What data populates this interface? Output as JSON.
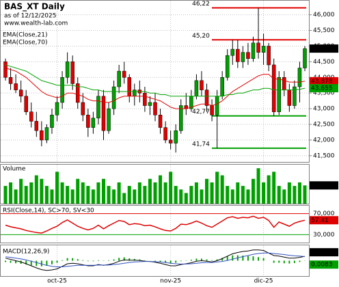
{
  "chart_data": {
    "type": "candlestick",
    "title": "BAS_XT Daily",
    "subtitle": "as of 12/12/2025",
    "source": "www.wealth-lab.com",
    "categories": [
      null,
      null,
      null,
      null,
      null,
      null,
      null,
      null,
      null,
      null,
      "oct-25",
      null,
      null,
      null,
      null,
      null,
      null,
      null,
      null,
      null,
      null,
      null,
      null,
      null,
      null,
      null,
      null,
      null,
      null,
      null,
      null,
      null,
      "nov-25",
      null,
      null,
      null,
      null,
      null,
      null,
      null,
      null,
      null,
      null,
      null,
      null,
      null,
      null,
      null,
      null,
      null,
      "dic-25",
      null,
      null,
      null,
      null,
      null,
      null,
      null,
      null
    ],
    "open": [
      44.5,
      44.0,
      43.8,
      43.6,
      43.4,
      42.9,
      42.6,
      42.3,
      42.0,
      42.4,
      42.8,
      43.2,
      44.0,
      44.5,
      43.8,
      43.2,
      42.8,
      42.4,
      42.7,
      43.4,
      42.3,
      43.0,
      43.7,
      44.2,
      44.0,
      43.4,
      43.6,
      43.5,
      43.1,
      43.2,
      42.8,
      42.4,
      42.0,
      41.9,
      42.3,
      43.1,
      43.0,
      43.4,
      43.9,
      43.6,
      43.1,
      42.8,
      43.4,
      44.0,
      44.7,
      44.9,
      44.5,
      44.8,
      44.6,
      45.1,
      44.8,
      45.0,
      44.4,
      42.9,
      44.0,
      43.6,
      43.1,
      43.7,
      44.3
    ],
    "high": [
      44.6,
      44.3,
      44.1,
      43.9,
      43.6,
      43.2,
      42.9,
      42.6,
      42.5,
      43.0,
      43.4,
      44.2,
      44.8,
      44.7,
      44.0,
      43.5,
      43.0,
      42.9,
      43.6,
      43.6,
      43.2,
      43.9,
      44.4,
      44.5,
      44.1,
      43.8,
      43.9,
      43.7,
      43.4,
      43.5,
      43.0,
      42.6,
      42.3,
      42.5,
      43.3,
      43.5,
      43.6,
      44.1,
      44.2,
      43.8,
      43.3,
      43.6,
      44.2,
      44.9,
      45.2,
      45.2,
      45.0,
      45.1,
      45.3,
      46.22,
      45.4,
      45.1,
      44.6,
      44.2,
      44.2,
      43.8,
      43.9,
      44.5,
      45.0
    ],
    "low": [
      43.9,
      43.6,
      43.5,
      43.2,
      42.8,
      42.4,
      42.1,
      41.8,
      41.9,
      42.2,
      42.6,
      43.0,
      43.8,
      43.6,
      43.0,
      42.6,
      42.1,
      42.2,
      42.5,
      42.0,
      42.2,
      42.8,
      43.5,
      43.8,
      43.2,
      43.1,
      43.2,
      42.9,
      42.8,
      42.6,
      42.2,
      41.9,
      41.7,
      41.6,
      42.2,
      42.8,
      42.9,
      43.3,
      43.4,
      42.9,
      42.6,
      41.74,
      43.3,
      43.9,
      44.4,
      44.3,
      44.3,
      44.4,
      44.5,
      44.6,
      44.4,
      44.2,
      42.77,
      42.8,
      43.4,
      42.9,
      43.0,
      43.2,
      44.2
    ],
    "close": [
      44.0,
      43.8,
      43.6,
      43.4,
      42.9,
      42.6,
      42.3,
      42.0,
      42.4,
      42.8,
      43.2,
      44.0,
      44.5,
      43.8,
      43.2,
      42.8,
      42.4,
      42.7,
      43.4,
      42.3,
      43.0,
      43.7,
      44.2,
      44.0,
      43.4,
      43.6,
      43.5,
      43.1,
      43.2,
      42.8,
      42.4,
      42.0,
      41.9,
      42.3,
      43.1,
      43.0,
      43.4,
      43.9,
      43.6,
      43.1,
      42.8,
      43.4,
      44.0,
      44.7,
      44.9,
      44.5,
      44.8,
      44.6,
      45.1,
      44.8,
      45.0,
      44.4,
      42.9,
      44.0,
      43.6,
      43.1,
      43.7,
      44.3,
      44.92
    ],
    "close_last_label": "44,920",
    "up_color": "#00a000",
    "down_color": "#e00000",
    "series": [
      {
        "name": "EMA(Close,21)",
        "color": "#e00000",
        "last_label": "43,878",
        "values": [
          44.3,
          44.25,
          44.2,
          44.1,
          44.0,
          43.85,
          43.7,
          43.55,
          43.45,
          43.4,
          43.35,
          43.4,
          43.5,
          43.5,
          43.45,
          43.4,
          43.3,
          43.25,
          43.25,
          43.2,
          43.2,
          43.25,
          43.35,
          43.4,
          43.4,
          43.4,
          43.4,
          43.4,
          43.35,
          43.3,
          43.25,
          43.15,
          43.05,
          43.0,
          43.0,
          43.0,
          43.05,
          43.1,
          43.15,
          43.15,
          43.1,
          43.15,
          43.25,
          43.4,
          43.55,
          43.65,
          43.75,
          43.85,
          43.95,
          44.05,
          44.1,
          44.1,
          43.95,
          43.95,
          43.9,
          43.85,
          43.85,
          43.85,
          43.878
        ]
      },
      {
        "name": "EMA(Close,70)",
        "color": "#00a000",
        "last_label": "43,655",
        "values": [
          44.4,
          44.35,
          44.3,
          44.25,
          44.2,
          44.1,
          44.0,
          43.9,
          43.85,
          43.8,
          43.75,
          43.75,
          43.75,
          43.75,
          43.7,
          43.7,
          43.65,
          43.6,
          43.6,
          43.55,
          43.55,
          43.55,
          43.55,
          43.55,
          43.55,
          43.55,
          43.55,
          43.55,
          43.5,
          43.5,
          43.45,
          43.45,
          43.4,
          43.4,
          43.4,
          43.4,
          43.4,
          43.4,
          43.4,
          43.4,
          43.4,
          43.4,
          43.4,
          43.45,
          43.45,
          43.5,
          43.5,
          43.55,
          43.6,
          43.6,
          43.65,
          43.65,
          43.6,
          43.6,
          43.6,
          43.6,
          43.6,
          43.62,
          43.655
        ]
      }
    ],
    "levels": [
      {
        "value": 46.22,
        "label": "46,22",
        "color": "#e00000"
      },
      {
        "value": 45.2,
        "label": "45,20",
        "color": "#e00000"
      },
      {
        "value": 42.77,
        "label": "42,77",
        "color": "#00a000"
      },
      {
        "value": 41.74,
        "label": "41,74",
        "color": "#00a000"
      }
    ],
    "ylim": [
      41.3,
      46.45
    ],
    "yticks": [
      {
        "value": 41.5,
        "label": "41,500"
      },
      {
        "value": 42,
        "label": "42,000"
      },
      {
        "value": 42.5,
        "label": "42,500"
      },
      {
        "value": 43,
        "label": "43,000"
      },
      {
        "value": 43.5,
        "label": "43,500"
      },
      {
        "value": 44,
        "label": "44,000"
      },
      {
        "value": 44.5,
        "label": "44,500"
      },
      {
        "value": 45,
        "label": "45,000"
      },
      {
        "value": 45.5,
        "label": "45,500"
      },
      {
        "value": 46,
        "label": "46,000"
      }
    ],
    "grid": true,
    "volume": {
      "name": "Volume",
      "color": "#00a000",
      "ylim": [
        0,
        11
      ],
      "last_label": "5,15 M",
      "values": [
        5,
        6,
        4,
        7,
        5,
        6,
        8,
        7,
        5,
        4,
        9,
        6,
        5,
        4,
        7,
        6,
        5,
        4,
        6,
        7,
        5,
        4,
        6,
        3,
        5,
        4,
        6,
        5,
        7,
        6,
        8,
        6,
        9,
        5,
        4,
        3,
        5,
        6,
        4,
        7,
        6,
        9,
        8,
        5,
        4,
        6,
        5,
        4,
        7,
        10,
        6,
        8,
        9,
        5,
        4,
        6,
        5,
        6,
        5.15
      ]
    },
    "rsi": {
      "name": "RSI(Close,14), SC>70, SV<30",
      "color": "#e00000",
      "ylim": [
        15,
        85
      ],
      "last_label": "57,41",
      "yticks": [
        {
          "value": 30,
          "label": "30,000"
        },
        {
          "value": 70,
          "label": "70,000"
        }
      ],
      "values": [
        48,
        45,
        43,
        41,
        38,
        36,
        34,
        33,
        37,
        42,
        46,
        53,
        58,
        52,
        46,
        42,
        39,
        42,
        48,
        41,
        47,
        52,
        57,
        55,
        49,
        51,
        50,
        47,
        48,
        45,
        41,
        38,
        37,
        42,
        50,
        49,
        52,
        56,
        52,
        47,
        44,
        50,
        56,
        62,
        64,
        61,
        63,
        62,
        65,
        61,
        63,
        57,
        44,
        54,
        50,
        46,
        52,
        55,
        57.41
      ]
    },
    "macd": {
      "name": "MACD(12,26,9)",
      "ylim": [
        -0.6,
        0.6
      ],
      "series": [
        {
          "color": "#000000",
          "last_label": "0,1694",
          "values": [
            0.1,
            0.05,
            0,
            -0.05,
            -0.12,
            -0.2,
            -0.28,
            -0.35,
            -0.38,
            -0.36,
            -0.32,
            -0.22,
            -0.12,
            -0.1,
            -0.12,
            -0.16,
            -0.2,
            -0.2,
            -0.15,
            -0.18,
            -0.15,
            -0.1,
            -0.02,
            0.03,
            0.02,
            0.02,
            0.01,
            -0.02,
            -0.03,
            -0.06,
            -0.1,
            -0.15,
            -0.2,
            -0.2,
            -0.15,
            -0.12,
            -0.08,
            -0.02,
            0,
            -0.02,
            -0.05,
            0,
            0.08,
            0.18,
            0.27,
            0.32,
            0.36,
            0.38,
            0.42,
            0.42,
            0.4,
            0.3,
            0.2,
            0.18,
            0.14,
            0.1,
            0.1,
            0.13,
            0.1694
          ]
        },
        {
          "color": "#3050c0",
          "values": [
            0.15,
            0.13,
            0.1,
            0.07,
            0.03,
            -0.02,
            -0.07,
            -0.13,
            -0.18,
            -0.22,
            -0.24,
            -0.24,
            -0.22,
            -0.2,
            -0.18,
            -0.18,
            -0.18,
            -0.18,
            -0.17,
            -0.17,
            -0.17,
            -0.15,
            -0.13,
            -0.1,
            -0.07,
            -0.05,
            -0.04,
            -0.03,
            -0.03,
            -0.04,
            -0.05,
            -0.07,
            -0.1,
            -0.12,
            -0.13,
            -0.13,
            -0.12,
            -0.1,
            -0.08,
            -0.07,
            -0.07,
            -0.05,
            -0.03,
            0.01,
            0.06,
            0.11,
            0.16,
            0.2,
            0.25,
            0.28,
            0.3,
            0.3,
            0.28,
            0.26,
            0.24,
            0.21,
            0.19,
            0.18,
            0.1611
          ]
        }
      ],
      "histogram": {
        "color": "#00a000",
        "last_label": "0,0083",
        "values": [
          -0.05,
          -0.08,
          -0.1,
          -0.12,
          -0.15,
          -0.18,
          -0.21,
          -0.22,
          -0.2,
          -0.14,
          -0.08,
          0.02,
          0.1,
          0.1,
          0.06,
          0.02,
          -0.02,
          -0.02,
          0.02,
          -0.01,
          0.02,
          0.05,
          0.11,
          0.13,
          0.09,
          0.07,
          0.05,
          0.01,
          0,
          -0.02,
          -0.05,
          -0.08,
          -0.1,
          -0.08,
          -0.02,
          0.01,
          0.04,
          0.08,
          0.08,
          0.05,
          0.02,
          0.05,
          0.11,
          0.17,
          0.21,
          0.21,
          0.2,
          0.18,
          0.17,
          0.14,
          0.1,
          0,
          -0.08,
          -0.08,
          -0.1,
          -0.11,
          -0.09,
          -0.05,
          0.0083
        ]
      }
    }
  }
}
